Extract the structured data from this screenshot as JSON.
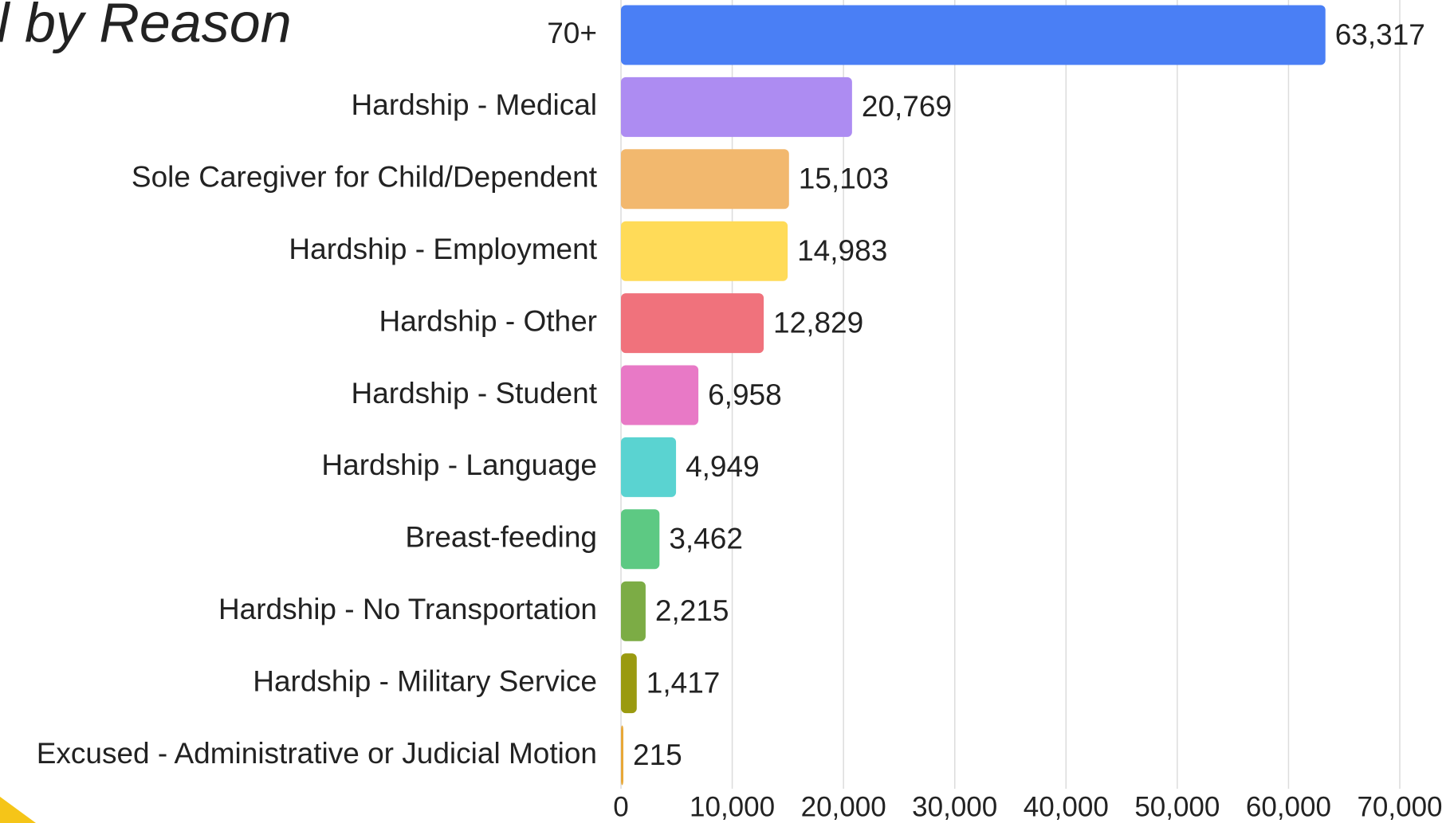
{
  "chart_data": {
    "type": "bar",
    "orientation": "horizontal",
    "title": "l by Reason",
    "categories": [
      "70+",
      "Hardship - Medical",
      "Sole Caregiver for Child/Dependent",
      "Hardship - Employment",
      "Hardship - Other",
      "Hardship - Student",
      "Hardship - Language",
      "Breast-feeding",
      "Hardship - No Transportation",
      "Hardship - Military Service",
      "Excused - Administrative or Judicial Motion"
    ],
    "values": [
      63317,
      20769,
      15103,
      14983,
      12829,
      6958,
      4949,
      3462,
      2215,
      1417,
      215
    ],
    "value_labels": [
      "63,317",
      "20,769",
      "15,103",
      "14,983",
      "12,829",
      "6,958",
      "4,949",
      "3,462",
      "2,215",
      "1,417",
      "215"
    ],
    "colors": [
      "#4a7ff5",
      "#ad8cf2",
      "#f2b86e",
      "#ffdb58",
      "#f0727c",
      "#e879c6",
      "#5ad3d1",
      "#5dc983",
      "#7cac45",
      "#9a9a10",
      "#e8a838"
    ],
    "xlim": [
      0,
      70000
    ],
    "xticks": [
      0,
      {
        "value": 10000,
        "label": "10,000"
      },
      {
        "value": 20000,
        "label": "20,000"
      },
      {
        "value": 30000,
        "label": "30,000"
      },
      {
        "value": 40000,
        "label": "40,000"
      },
      {
        "value": 50000,
        "label": "50,000"
      },
      {
        "value": 60000,
        "label": "60,000"
      },
      {
        "value": 70000,
        "label": "70,000"
      }
    ],
    "grid": true
  }
}
